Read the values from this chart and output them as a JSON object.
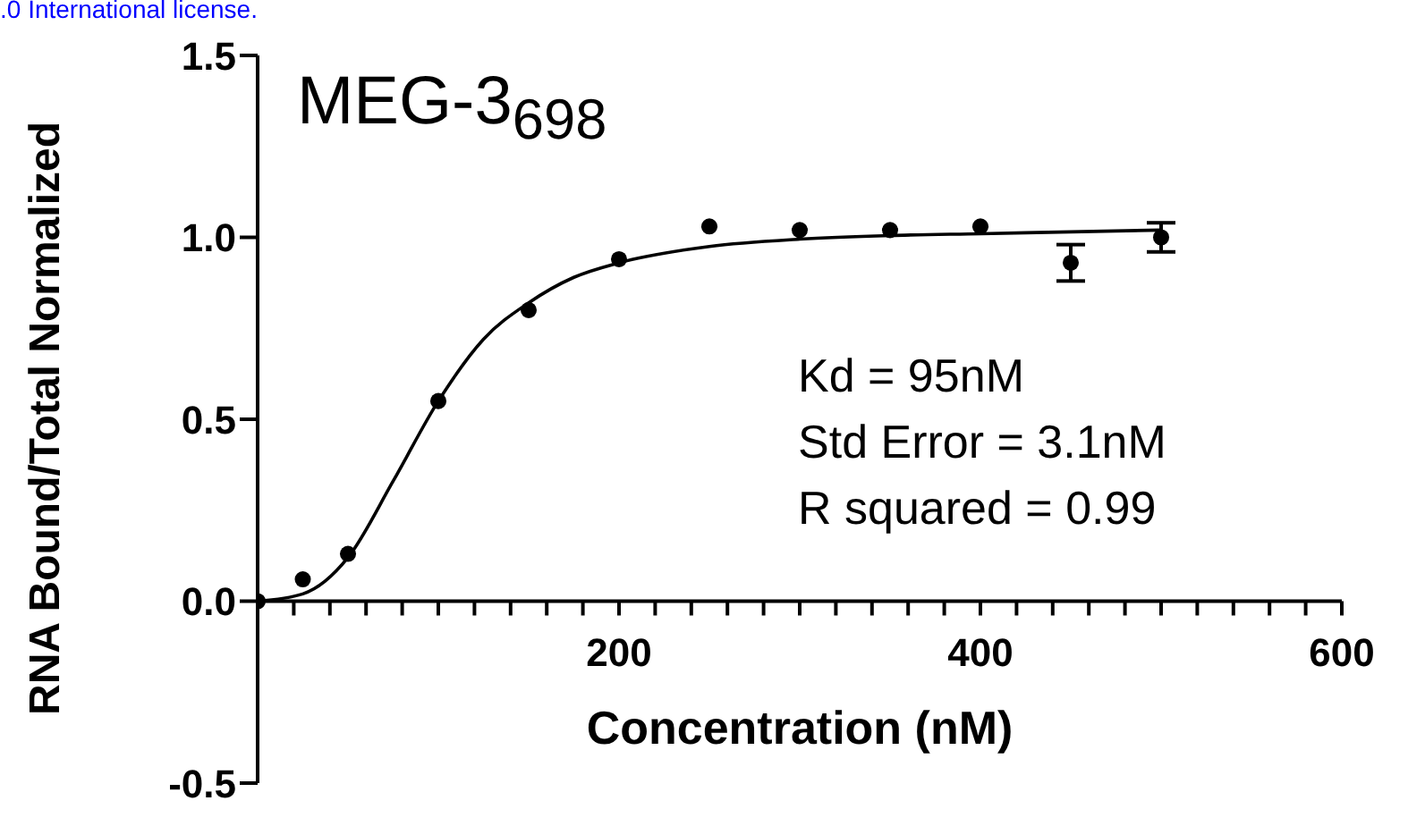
{
  "chart_data": {
    "type": "scatter",
    "title": "MEG-3$_{698}$",
    "xlabel": "Concentration (nM)",
    "ylabel": "RNA Bound/Total Normalized",
    "annotations": [
      "Kd = 95nM",
      "Std Error = 3.1nM",
      "R squared = 0.99",
      ".0 International license."
    ],
    "xlim": [
      0,
      600
    ],
    "xticks": [
      {
        "value": 0,
        "label": null
      },
      {
        "value": 20,
        "label": null
      },
      {
        "value": 40,
        "label": null
      },
      {
        "value": 60,
        "label": null
      },
      {
        "value": 80,
        "label": null
      },
      {
        "value": 100,
        "label": null
      },
      {
        "value": 120,
        "label": null
      },
      {
        "value": 140,
        "label": null
      },
      {
        "value": 160,
        "label": null
      },
      {
        "value": 180,
        "label": null
      },
      200,
      {
        "value": 220,
        "label": null
      },
      {
        "value": 240,
        "label": null
      },
      {
        "value": 260,
        "label": null
      },
      {
        "value": 280,
        "label": null
      },
      {
        "value": 300,
        "label": null
      },
      {
        "value": 320,
        "label": null
      },
      {
        "value": 340,
        "label": null
      },
      {
        "value": 360,
        "label": null
      },
      {
        "value": 380,
        "label": null
      },
      400,
      {
        "value": 420,
        "label": null
      },
      {
        "value": 440,
        "label": null
      },
      {
        "value": 460,
        "label": null
      },
      {
        "value": 480,
        "label": null
      },
      {
        "value": 500,
        "label": null
      },
      {
        "value": 520,
        "label": null
      },
      {
        "value": 540,
        "label": null
      },
      {
        "value": 560,
        "label": null
      },
      {
        "value": 580,
        "label": null
      },
      600
    ],
    "ylim": [
      -0.5,
      1.5
    ],
    "yticks": [
      {
        "value": -0.5,
        "label": "-0.5"
      },
      {
        "value": 0,
        "label": "0.0"
      },
      {
        "value": 0.5,
        "label": "0.5"
      },
      {
        "value": 1,
        "label": "1.0"
      },
      {
        "value": 1.5,
        "label": "1.5"
      }
    ],
    "grid": false,
    "series": [
      {
        "type": "scatter",
        "color": "#000000",
        "marker": "circle",
        "x": [
          0,
          25,
          50,
          100,
          150,
          200,
          250,
          300,
          350,
          400,
          450,
          500
        ],
        "values": [
          0,
          0.06,
          0.13,
          0.55,
          0.8,
          0.94,
          1.03,
          1.02,
          1.02,
          1.03,
          0.93,
          1.0
        ],
        "errors": [
          null,
          null,
          null,
          null,
          null,
          null,
          null,
          null,
          null,
          null,
          0.05,
          0.04
        ]
      },
      {
        "type": "line",
        "color": "#000000",
        "marker": "none",
        "x": [
          0,
          25,
          50,
          75,
          100,
          125,
          150,
          175,
          200,
          250,
          300,
          350,
          400,
          450,
          500
        ],
        "values": [
          0,
          0.02,
          0.12,
          0.33,
          0.55,
          0.72,
          0.82,
          0.89,
          0.93,
          0.975,
          0.995,
          1.005,
          1.01,
          1.015,
          1.02
        ]
      }
    ]
  }
}
